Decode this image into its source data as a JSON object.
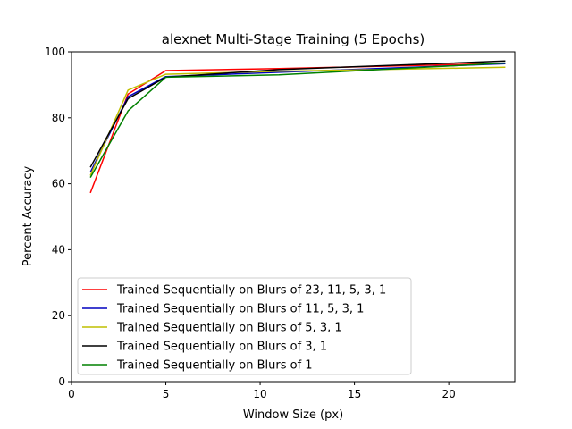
{
  "chart_data": {
    "type": "line",
    "title": "alexnet Multi-Stage Training (5 Epochs)",
    "xlabel": "Window Size (px)",
    "ylabel": "Percent Accuracy",
    "xlim": [
      0,
      23.5
    ],
    "ylim": [
      0,
      100
    ],
    "xticks": [
      0,
      5,
      10,
      15,
      20
    ],
    "yticks": [
      0,
      20,
      40,
      60,
      80,
      100
    ],
    "grid": false,
    "legend_position": "lower-left",
    "x": [
      1,
      3,
      5,
      11,
      23
    ],
    "series": [
      {
        "name": "Trained Sequentially on Blurs of 23, 11, 5, 3, 1",
        "color": "#ff0000",
        "values": [
          57.2,
          87.2,
          94.3,
          94.9,
          96.5
        ]
      },
      {
        "name": "Trained Sequentially on Blurs of 11, 5, 3, 1",
        "color": "#0000bf",
        "values": [
          63.5,
          86.4,
          92.5,
          93.8,
          96.4
        ]
      },
      {
        "name": "Trained Sequentially on Blurs of 5, 3, 1",
        "color": "#bfbf00",
        "values": [
          62.5,
          88.4,
          93.2,
          94.1,
          95.3
        ]
      },
      {
        "name": "Trained Sequentially on Blurs of 3, 1",
        "color": "#000000",
        "values": [
          65.0,
          85.8,
          92.3,
          94.6,
          97.2
        ]
      },
      {
        "name": "Trained Sequentially on Blurs of 1",
        "color": "#008000",
        "values": [
          61.9,
          82.1,
          92.3,
          93.0,
          96.6
        ]
      }
    ]
  }
}
